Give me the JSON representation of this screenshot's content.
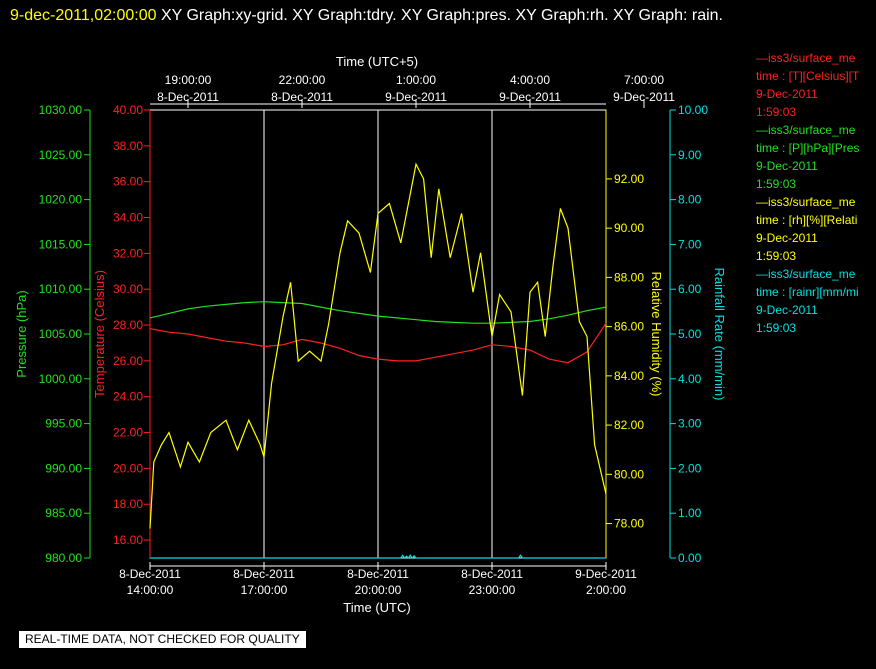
{
  "header": {
    "timestamp": "9-dec-2011,02:00:00",
    "rest": "XY Graph:xy-grid.  XY Graph:tdry.  XY Graph:pres.  XY Graph:rh.  XY Graph: rain."
  },
  "legend": [
    {
      "line1": "—iss3/surface_me",
      "line2": "time : [T][Celsius][T",
      "line3": "9-Dec-2011",
      "line4": "1:59:03",
      "color": "#ff2020"
    },
    {
      "line1": "—iss3/surface_me",
      "line2": "time : [P][hPa][Pres",
      "line3": "9-Dec-2011",
      "line4": "1:59:03",
      "color": "#20e020"
    },
    {
      "line1": "—iss3/surface_me",
      "line2": "time : [rh][%][Relati",
      "line3": "9-Dec-2011",
      "line4": "1:59:03",
      "color": "#ffff00"
    },
    {
      "line1": "—iss3/surface_me",
      "line2": "time : [rainr][mm/mi",
      "line3": "9-Dec-2011",
      "line4": "1:59:03",
      "color": "#00e0e0"
    }
  ],
  "disclaimer": "REAL-TIME DATA, NOT CHECKED FOR QUALITY",
  "chart_data": {
    "type": "line",
    "top_axis": {
      "label": "Time (UTC+5)",
      "ticks": [
        {
          "time": "19:00:00",
          "date": "8-Dec-2011"
        },
        {
          "time": "22:00:00",
          "date": "8-Dec-2011"
        },
        {
          "time": "1:00:00",
          "date": "9-Dec-2011"
        },
        {
          "time": "4:00:00",
          "date": "9-Dec-2011"
        },
        {
          "time": "7:00:00",
          "date": "9-Dec-2011"
        }
      ]
    },
    "bottom_axis": {
      "label": "Time (UTC)",
      "ticks": [
        {
          "date": "8-Dec-2011",
          "time": "14:00:00"
        },
        {
          "date": "8-Dec-2011",
          "time": "17:00:00"
        },
        {
          "date": "8-Dec-2011",
          "time": "20:00:00"
        },
        {
          "date": "8-Dec-2011",
          "time": "23:00:00"
        },
        {
          "date": "9-Dec-2011",
          "time": "2:00:00"
        }
      ],
      "range_hours_utc": [
        14,
        26
      ]
    },
    "axes": {
      "pressure": {
        "label": "Pressure (hPa)",
        "color": "#20e020",
        "range": [
          980,
          1030
        ],
        "ticks": [
          "980.00",
          "985.00",
          "990.00",
          "995.00",
          "1000.00",
          "1005.00",
          "1010.00",
          "1015.00",
          "1020.00",
          "1025.00",
          "1030.00"
        ]
      },
      "temperature": {
        "label": "Temperature (Celsius)",
        "color": "#ff2020",
        "range": [
          15,
          40
        ],
        "ticks": [
          "16.00",
          "18.00",
          "20.00",
          "22.00",
          "24.00",
          "26.00",
          "28.00",
          "30.00",
          "32.00",
          "34.00",
          "36.00",
          "38.00",
          "40.00"
        ]
      },
      "humidity": {
        "label": "Relative Humidity (%)",
        "color": "#ffff00",
        "range": [
          76.6,
          94.8
        ],
        "ticks": [
          "78.00",
          "80.00",
          "82.00",
          "84.00",
          "86.00",
          "88.00",
          "90.00",
          "92.00"
        ]
      },
      "rain": {
        "label": "Rainfall Rate (mm/min)",
        "color": "#00e0e0",
        "range": [
          0,
          10
        ],
        "ticks": [
          "0.00",
          "1.00",
          "2.00",
          "3.00",
          "4.00",
          "5.00",
          "6.00",
          "7.00",
          "8.00",
          "9.00",
          "10.00"
        ]
      }
    },
    "series": [
      {
        "name": "tdry",
        "axis": "temperature",
        "x": [
          14.0,
          14.5,
          15.0,
          15.5,
          16.0,
          16.5,
          17.0,
          17.5,
          18.0,
          18.5,
          19.0,
          19.5,
          20.0,
          20.5,
          21.0,
          21.5,
          22.0,
          22.5,
          23.0,
          23.5,
          24.0,
          24.5,
          25.0,
          25.5,
          26.0
        ],
        "y": [
          27.8,
          27.6,
          27.5,
          27.3,
          27.1,
          27.0,
          26.8,
          26.9,
          27.2,
          27.0,
          26.7,
          26.3,
          26.1,
          26.0,
          26.0,
          26.2,
          26.4,
          26.6,
          26.9,
          26.8,
          26.6,
          26.1,
          25.9,
          26.5,
          28.1
        ]
      },
      {
        "name": "pres",
        "axis": "pressure",
        "x": [
          14.0,
          14.5,
          15.0,
          15.5,
          16.0,
          16.5,
          17.0,
          17.5,
          18.0,
          18.5,
          19.0,
          19.5,
          20.0,
          20.5,
          21.0,
          21.5,
          22.0,
          22.5,
          23.0,
          23.5,
          24.0,
          24.5,
          25.0,
          25.5,
          26.0
        ],
        "y": [
          1006.8,
          1007.3,
          1007.8,
          1008.1,
          1008.3,
          1008.5,
          1008.6,
          1008.5,
          1008.4,
          1008.0,
          1007.6,
          1007.3,
          1007.0,
          1006.8,
          1006.6,
          1006.4,
          1006.3,
          1006.2,
          1006.2,
          1006.3,
          1006.4,
          1006.7,
          1007.1,
          1007.6,
          1008.0
        ]
      },
      {
        "name": "rh",
        "axis": "humidity",
        "x": [
          14.0,
          14.1,
          14.3,
          14.5,
          14.8,
          15.0,
          15.3,
          15.6,
          16.0,
          16.3,
          16.6,
          16.9,
          17.0,
          17.2,
          17.5,
          17.7,
          17.9,
          18.2,
          18.5,
          18.7,
          19.0,
          19.2,
          19.5,
          19.8,
          20.0,
          20.3,
          20.6,
          21.0,
          21.2,
          21.4,
          21.6,
          21.9,
          22.2,
          22.5,
          22.7,
          23.0,
          23.2,
          23.5,
          23.8,
          24.0,
          24.2,
          24.4,
          24.6,
          24.8,
          25.0,
          25.3,
          25.5,
          25.7,
          26.0
        ],
        "y": [
          77.8,
          80.5,
          81.2,
          81.7,
          80.3,
          81.3,
          80.5,
          81.7,
          82.2,
          81.0,
          82.2,
          81.2,
          80.7,
          83.7,
          86.4,
          87.8,
          84.6,
          85.0,
          84.6,
          86.1,
          89.0,
          90.3,
          89.8,
          88.2,
          90.6,
          91.0,
          89.4,
          92.6,
          92.0,
          88.8,
          91.6,
          88.8,
          90.6,
          87.4,
          89.0,
          85.6,
          87.3,
          86.6,
          83.2,
          87.4,
          87.8,
          85.6,
          88.4,
          90.8,
          90.0,
          86.2,
          85.6,
          81.2,
          79.2
        ]
      },
      {
        "name": "rain",
        "axis": "rain",
        "x": [
          14.0,
          20.6,
          20.65,
          20.7,
          20.75,
          20.8,
          20.85,
          20.9,
          20.95,
          21.0,
          23.7,
          23.75,
          23.8,
          26.0
        ],
        "y": [
          0.0,
          0.0,
          0.06,
          0.0,
          0.04,
          0.0,
          0.06,
          0.0,
          0.05,
          0.0,
          0.0,
          0.06,
          0.0,
          0.0
        ]
      }
    ]
  }
}
